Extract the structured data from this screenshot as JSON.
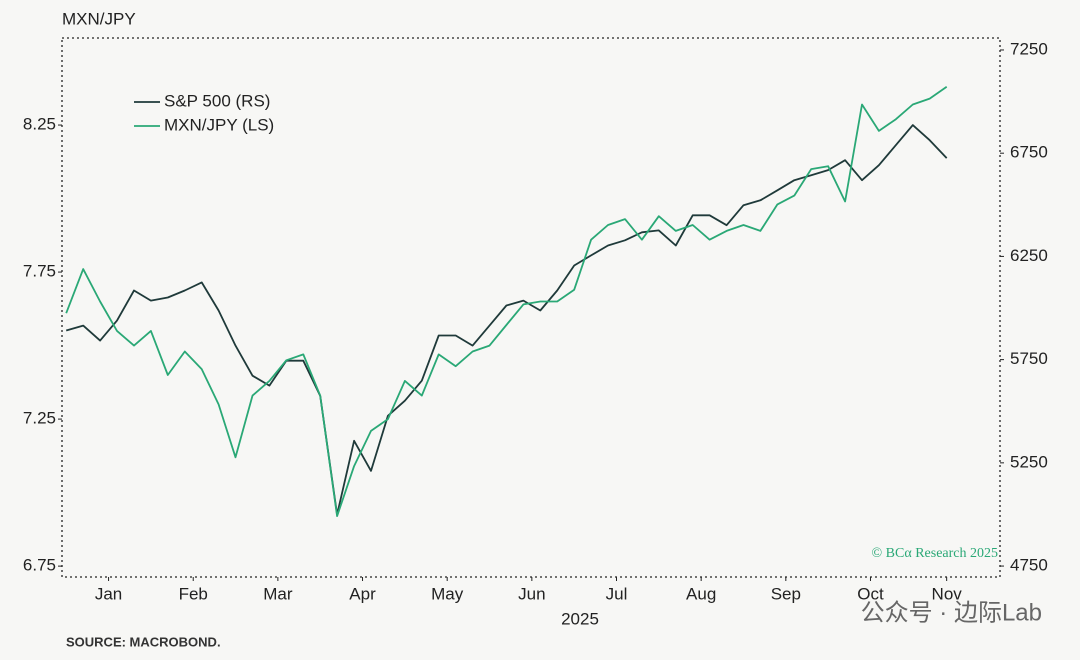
{
  "chart_data": {
    "type": "line",
    "y_label": "MXN/JPY",
    "x_label": "2025",
    "source": "SOURCE: MACROBOND.",
    "annotation": "© BCα Research 2025",
    "watermark": "公众号 · 边际Lab",
    "legend": "upper left",
    "x": [
      0,
      0.2,
      0.4,
      0.6,
      0.8,
      1.0,
      1.2,
      1.4,
      1.6,
      1.8,
      2.0,
      2.2,
      2.4,
      2.6,
      2.8,
      3.0,
      3.2,
      3.4,
      3.6,
      3.8,
      4.0,
      4.2,
      4.4,
      4.6,
      4.8,
      5.0,
      5.2,
      5.4,
      5.6,
      5.8,
      6.0,
      6.2,
      6.4,
      6.6,
      6.8,
      7.0,
      7.2,
      7.4,
      7.6,
      7.8,
      8.0,
      8.2,
      8.4,
      8.6,
      8.8,
      9.0,
      9.2,
      9.4,
      9.6,
      9.8,
      10.0,
      10.2,
      10.4
    ],
    "xlim": [
      -0.05,
      11.03
    ],
    "xticks": [
      {
        "value": 0.5,
        "label": "Jan"
      },
      {
        "value": 1.5,
        "label": "Feb"
      },
      {
        "value": 2.5,
        "label": "Mar"
      },
      {
        "value": 3.5,
        "label": "Apr"
      },
      {
        "value": 4.5,
        "label": "May"
      },
      {
        "value": 5.5,
        "label": "Jun"
      },
      {
        "value": 6.5,
        "label": "Jul"
      },
      {
        "value": 7.5,
        "label": "Aug"
      },
      {
        "value": 8.5,
        "label": "Sep"
      },
      {
        "value": 9.5,
        "label": "Oct"
      },
      {
        "value": 10.4,
        "label": "Nov"
      }
    ],
    "ylim": [
      6.713,
      8.546
    ],
    "yticks": [
      6.75,
      7.25,
      7.75,
      8.25
    ],
    "y2lim": [
      4697,
      7308
    ],
    "y2ticks": [
      4750,
      5250,
      5750,
      6250,
      6750,
      7250
    ],
    "series": [
      {
        "name": "S&P 500 (RS)",
        "color": "#1f3a3a",
        "axis": "y2",
        "values": [
          5891,
          5915,
          5842,
          5939,
          6085,
          6036,
          6051,
          6085,
          6124,
          5988,
          5818,
          5672,
          5624,
          5745,
          5745,
          5575,
          5000,
          5357,
          5211,
          5478,
          5551,
          5648,
          5867,
          5867,
          5818,
          5915,
          6012,
          6036,
          5988,
          6085,
          6206,
          6255,
          6303,
          6328,
          6367,
          6376,
          6303,
          6449,
          6449,
          6401,
          6498,
          6522,
          6570,
          6619,
          6643,
          6668,
          6716,
          6619,
          6692,
          6789,
          6886,
          6813,
          6726
        ]
      },
      {
        "name": "MXN/JPY (LS)",
        "color": "#2aa876",
        "axis": "y",
        "values": [
          7.61,
          7.76,
          7.65,
          7.55,
          7.5,
          7.55,
          7.4,
          7.48,
          7.42,
          7.3,
          7.12,
          7.33,
          7.38,
          7.45,
          7.47,
          7.33,
          6.92,
          7.09,
          7.21,
          7.25,
          7.38,
          7.33,
          7.47,
          7.43,
          7.48,
          7.5,
          7.57,
          7.64,
          7.65,
          7.65,
          7.69,
          7.86,
          7.91,
          7.93,
          7.86,
          7.94,
          7.89,
          7.91,
          7.86,
          7.89,
          7.91,
          7.89,
          7.98,
          8.01,
          8.1,
          8.11,
          7.99,
          8.32,
          8.23,
          8.27,
          8.32,
          8.34,
          8.38
        ]
      }
    ]
  }
}
